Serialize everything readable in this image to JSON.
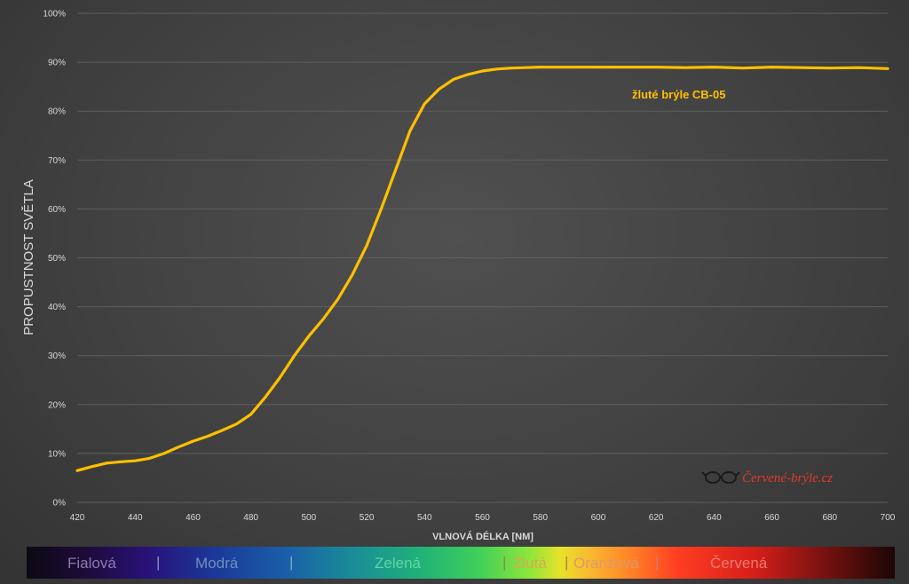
{
  "chart_data": {
    "type": "line",
    "title": "",
    "xlabel": "VLNOVÁ DÉLKA [NM]",
    "ylabel": "PROPUSTNOST SVĚTLA",
    "xlim": [
      420,
      700
    ],
    "ylim": [
      0,
      100
    ],
    "x_ticks": [
      "420",
      "440",
      "460",
      "480",
      "500",
      "520",
      "540",
      "560",
      "580",
      "600",
      "620",
      "640",
      "660",
      "680",
      "700"
    ],
    "y_ticks": [
      "0%",
      "10%",
      "20%",
      "30%",
      "40%",
      "50%",
      "60%",
      "70%",
      "80%",
      "90%",
      "100%"
    ],
    "grid": "horizontal",
    "series": [
      {
        "name": "žluté brýle CB-05",
        "color": "#ffc000",
        "x": [
          420,
          425,
          430,
          435,
          440,
          445,
          450,
          455,
          460,
          465,
          470,
          475,
          480,
          485,
          490,
          495,
          500,
          505,
          510,
          515,
          520,
          525,
          530,
          535,
          540,
          545,
          550,
          555,
          560,
          565,
          570,
          575,
          580,
          585,
          590,
          595,
          600,
          610,
          620,
          630,
          640,
          650,
          660,
          670,
          680,
          690,
          700
        ],
        "y": [
          6.5,
          7.3,
          8.0,
          8.3,
          8.5,
          9.0,
          10.0,
          11.3,
          12.5,
          13.5,
          14.7,
          16.0,
          18.0,
          21.5,
          25.5,
          30.0,
          34.0,
          37.5,
          41.5,
          46.5,
          52.5,
          60.0,
          68.0,
          76.0,
          81.5,
          84.5,
          86.5,
          87.5,
          88.2,
          88.6,
          88.8,
          88.9,
          89.0,
          89.0,
          89.0,
          89.0,
          89.0,
          89.0,
          89.0,
          88.9,
          89.0,
          88.8,
          89.0,
          88.9,
          88.8,
          88.9,
          88.7
        ]
      }
    ]
  },
  "colors": {
    "series_line": "#ffc000",
    "series_label": "#ffc000",
    "brand": "#e03a2a",
    "grid": "#5f5f5f",
    "tick_text": "#d9d9d9"
  },
  "brand": {
    "text": "Červené-brýle.cz",
    "icon": "glasses-icon"
  },
  "spectrum_bar": {
    "labels": [
      {
        "text": "Fialová",
        "color": "#8a7ab0"
      },
      {
        "text": "Modrá",
        "color": "#6f8fb8"
      },
      {
        "text": "Zelená",
        "color": "#5fd6a6"
      },
      {
        "text": "Žlutá",
        "color": "#d9a850"
      },
      {
        "text": "Oranžová",
        "color": "#e0986a"
      },
      {
        "text": "Červená",
        "color": "#f07a70"
      }
    ],
    "separator": "|"
  }
}
